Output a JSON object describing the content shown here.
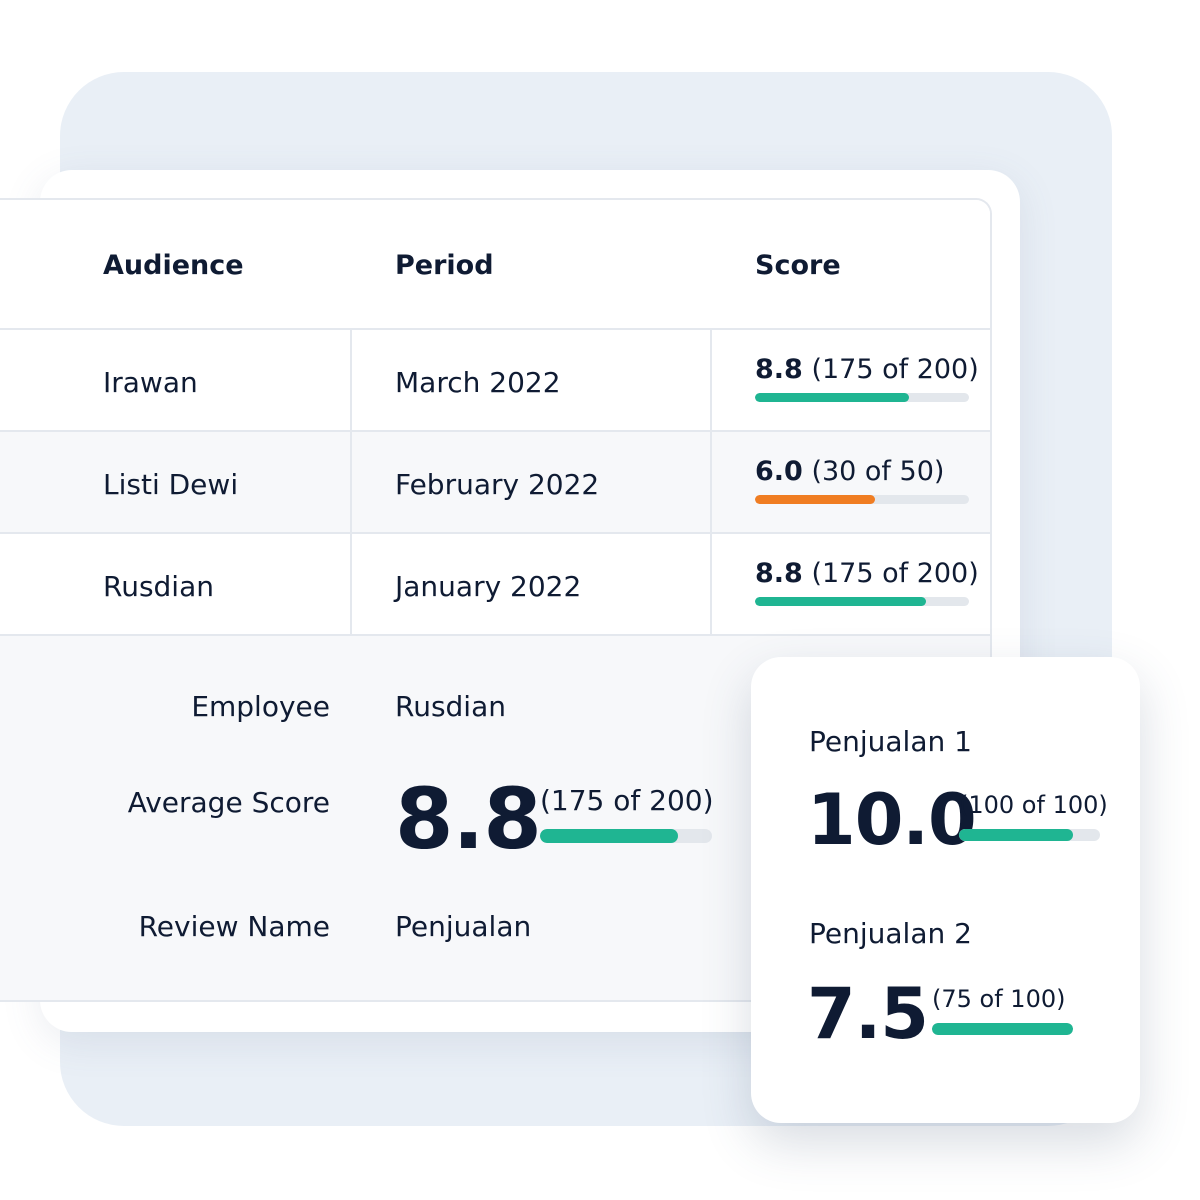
{
  "colors": {
    "green": "#1fb592",
    "orange": "#f07d22",
    "track": "#e3e7ec",
    "text": "#0f1b33"
  },
  "table": {
    "headers": {
      "audience": "Audience",
      "period": "Period",
      "score": "Score"
    },
    "rows": [
      {
        "audience": "Irawan",
        "period": "March 2022",
        "score_value": "8.8",
        "score_detail": "(175 of 200)",
        "progress_fraction": 0.72,
        "color": "green"
      },
      {
        "audience": "Listi Dewi",
        "period": "February 2022",
        "score_value": "6.0",
        "score_detail": "(30 of 50)",
        "progress_fraction": 0.56,
        "color": "orange"
      },
      {
        "audience": "Rusdian",
        "period": "January 2022",
        "score_value": "8.8",
        "score_detail": "(175 of 200)",
        "progress_fraction": 0.8,
        "color": "green"
      }
    ]
  },
  "detail": {
    "employee_label": "Employee",
    "employee_value": "Rusdian",
    "average_label": "Average Score",
    "average_value": "8.8",
    "average_detail": "(175 of 200)",
    "average_progress_fraction": 0.8,
    "review_label": "Review Name",
    "review_value": "Penjualan"
  },
  "popup": {
    "items": [
      {
        "title": "Penjualan 1",
        "value": "10.0",
        "detail": "(100 of 100)",
        "progress_fraction": 0.81
      },
      {
        "title": "Penjualan 2",
        "value": "7.5",
        "detail": "(75 of 100)",
        "progress_fraction": 1.0
      }
    ]
  }
}
